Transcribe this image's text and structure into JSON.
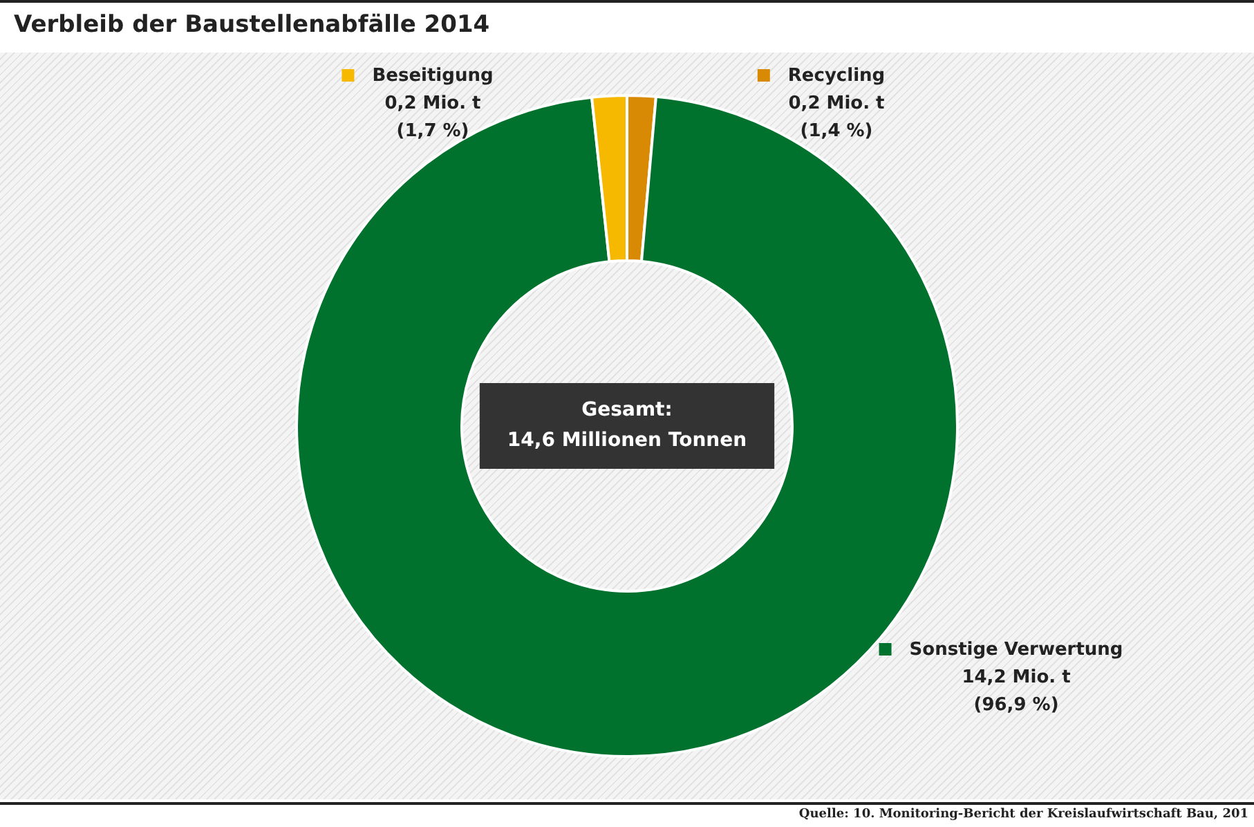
{
  "chart_data": {
    "type": "donut",
    "title": "Verbleib der Baustellenabfälle 2014",
    "categories": [
      "Recycling",
      "Sonstige Verwertung",
      "Beseitigung"
    ],
    "values": [
      1.4,
      96.9,
      1.7
    ],
    "colors": [
      "#d98a05",
      "#00722d",
      "#f7b900"
    ],
    "value_labels": [
      "0,2 Mio. t\n(1,4 %)",
      "14,2 Mio. t\n(96,9 %)",
      "0,2 Mio. t\n(1,7 %)"
    ],
    "annotations": [
      "Gesamt:\n14,6 Millionen Tonnen",
      "Quelle: 10. Monitoring-Bericht der Kreislaufwirtschaft Bau, 201"
    ],
    "legend": "top"
  }
}
